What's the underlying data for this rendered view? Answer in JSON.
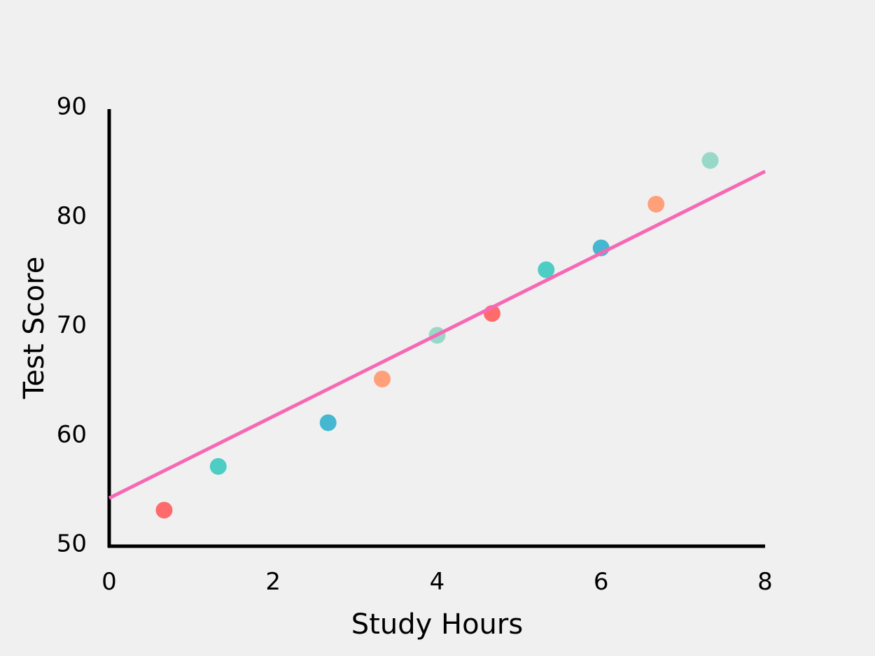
{
  "chart_data": {
    "type": "scatter",
    "title": "",
    "xlabel": "Study Hours",
    "ylabel": "Test Score",
    "xlim": [
      0,
      8
    ],
    "ylim": [
      50,
      90
    ],
    "x_ticks": [
      "0",
      "2",
      "4",
      "6",
      "8"
    ],
    "y_ticks": [
      "50",
      "60",
      "70",
      "80",
      "90"
    ],
    "grid": false,
    "legend": "none",
    "points": [
      {
        "x": 0.67,
        "y": 53.3,
        "color": "#ff6b6b"
      },
      {
        "x": 1.33,
        "y": 57.3,
        "color": "#4ecdc4"
      },
      {
        "x": 2.67,
        "y": 61.3,
        "color": "#45b7d1"
      },
      {
        "x": 3.33,
        "y": 65.3,
        "color": "#ffa07a"
      },
      {
        "x": 4.0,
        "y": 69.3,
        "color": "#98d8c8"
      },
      {
        "x": 4.67,
        "y": 71.3,
        "color": "#ff6b6b"
      },
      {
        "x": 5.33,
        "y": 75.3,
        "color": "#4ecdc4"
      },
      {
        "x": 6.0,
        "y": 77.3,
        "color": "#45b7d1"
      },
      {
        "x": 6.67,
        "y": 81.3,
        "color": "#ffa07a"
      },
      {
        "x": 7.33,
        "y": 85.3,
        "color": "#98d8c8"
      }
    ],
    "trend_line": {
      "x": [
        0,
        8
      ],
      "y": [
        54.4,
        84.3
      ],
      "color": "#f768b4"
    },
    "axis_color": "#000000",
    "background": "#f0f0f0"
  }
}
